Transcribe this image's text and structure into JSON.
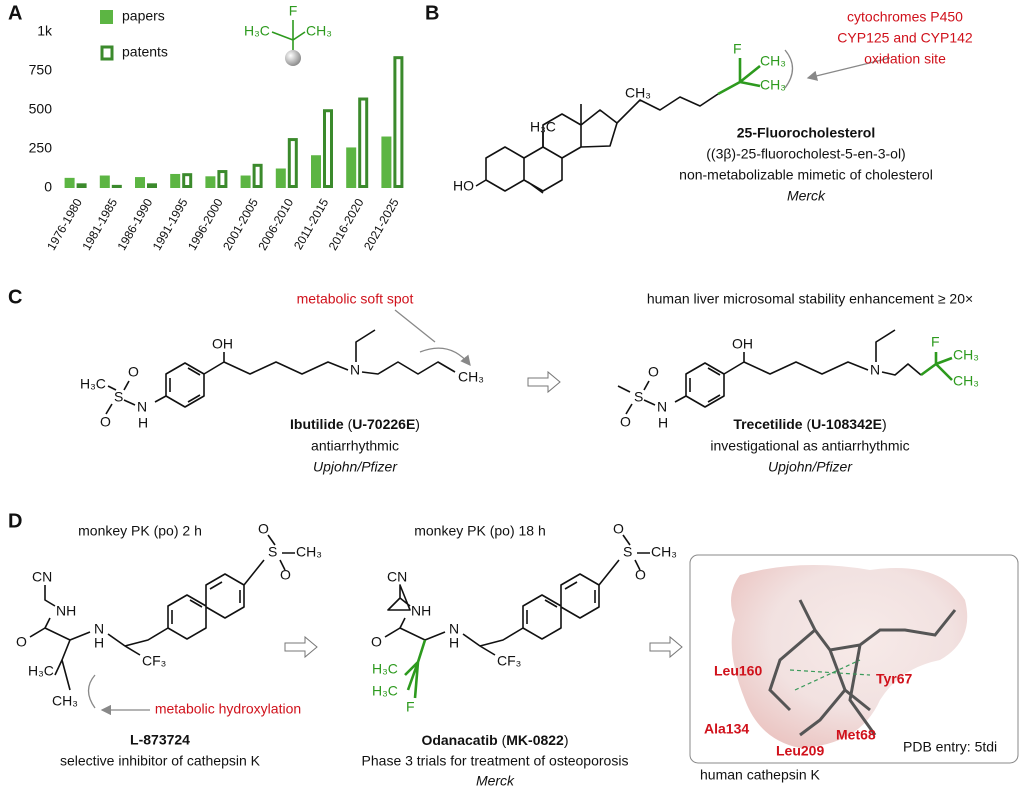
{
  "panel_labels": [
    "A",
    "B",
    "C",
    "D"
  ],
  "chart_data": {
    "type": "bar",
    "categories": [
      "1976-1980",
      "1981-1985",
      "1986-1990",
      "1991-1995",
      "1996-2000",
      "2001-2005",
      "2006-2010",
      "2011-2015",
      "2016-2020",
      "2021-2025"
    ],
    "series": [
      {
        "name": "papers",
        "color": "#5cb543",
        "hollow": false,
        "values": [
          65,
          80,
          70,
          90,
          75,
          80,
          125,
          210,
          260,
          330
        ]
      },
      {
        "name": "patents",
        "color": "#3b8a2c",
        "hollow": true,
        "values": [
          30,
          20,
          30,
          95,
          115,
          155,
          320,
          505,
          580,
          845
        ]
      }
    ],
    "ylim": [
      0,
      1000
    ],
    "yticks": [
      0,
      250,
      500,
      750,
      {
        "value": 1000,
        "label": "1k"
      }
    ],
    "grid": false
  },
  "panel_a_molecule": [
    "H₃C",
    "F",
    "CH₃"
  ],
  "panel_b": {
    "annotation": [
      "cytochromes P450",
      "CYP125 and CYP142",
      "oxidation site"
    ],
    "name": "25-Fluorocholesterol",
    "iupac": "((3β)-25-fluorocholest-5-en-3-ol)",
    "description": "non-metabolizable mimetic of cholesterol",
    "company": "Merck",
    "atoms": [
      "F",
      "CH₃",
      "CH₃",
      "CH₃",
      "H₃C",
      "HO"
    ]
  },
  "panel_c": {
    "annotation": "metabolic soft spot",
    "enhancement": "human liver microsomal stability enhancement ≥ 20×",
    "ibutilide": {
      "name_parts": [
        "Ibutilide",
        " (",
        "U-70226E",
        ")"
      ],
      "use": "antiarrhythmic",
      "company": "Upjohn/Pfizer",
      "atoms": [
        "H₃C",
        "S",
        "O",
        "O",
        "N",
        "H",
        "OH",
        "N",
        "CH₃"
      ]
    },
    "trecetilide": {
      "name_parts": [
        "Trecetilide",
        " (",
        "U-108342E",
        ")"
      ],
      "use": "investigational as antiarrhythmic",
      "company": "Upjohn/Pfizer",
      "atoms": [
        "S",
        "O",
        "O",
        "N",
        "H",
        "OH",
        "N",
        "F",
        "CH₃",
        "CH₃"
      ]
    }
  },
  "panel_d": {
    "pk": [
      "monkey PK (po) 2 h",
      "monkey PK (po) 18 h"
    ],
    "annotation": "metabolic hydroxylation",
    "l873724": {
      "name": "L-873724",
      "description": "selective inhibitor of cathepsin K",
      "atoms": [
        "CN",
        "NH",
        "O",
        "N",
        "H",
        "CF₃",
        "H₃C",
        "CH₃",
        "S",
        "O",
        "O",
        "CH₃"
      ]
    },
    "odanacatib": {
      "name_parts": [
        "Odanacatib",
        " (",
        "MK-0822",
        ")"
      ],
      "description": "Phase 3 trials for treatment of osteoporosis",
      "company": "Merck",
      "atoms": [
        "CN",
        "NH",
        "O",
        "N",
        "H",
        "CF₃",
        "H₃C",
        "H₃C",
        "F",
        "S",
        "O",
        "O",
        "CH₃"
      ]
    },
    "structure": {
      "residues": [
        "Leu160",
        "Tyr67",
        "Ala134",
        "Met68",
        "Leu209"
      ],
      "pdb": "PDB entry: 5tdi",
      "caption": "human cathepsin K"
    }
  }
}
